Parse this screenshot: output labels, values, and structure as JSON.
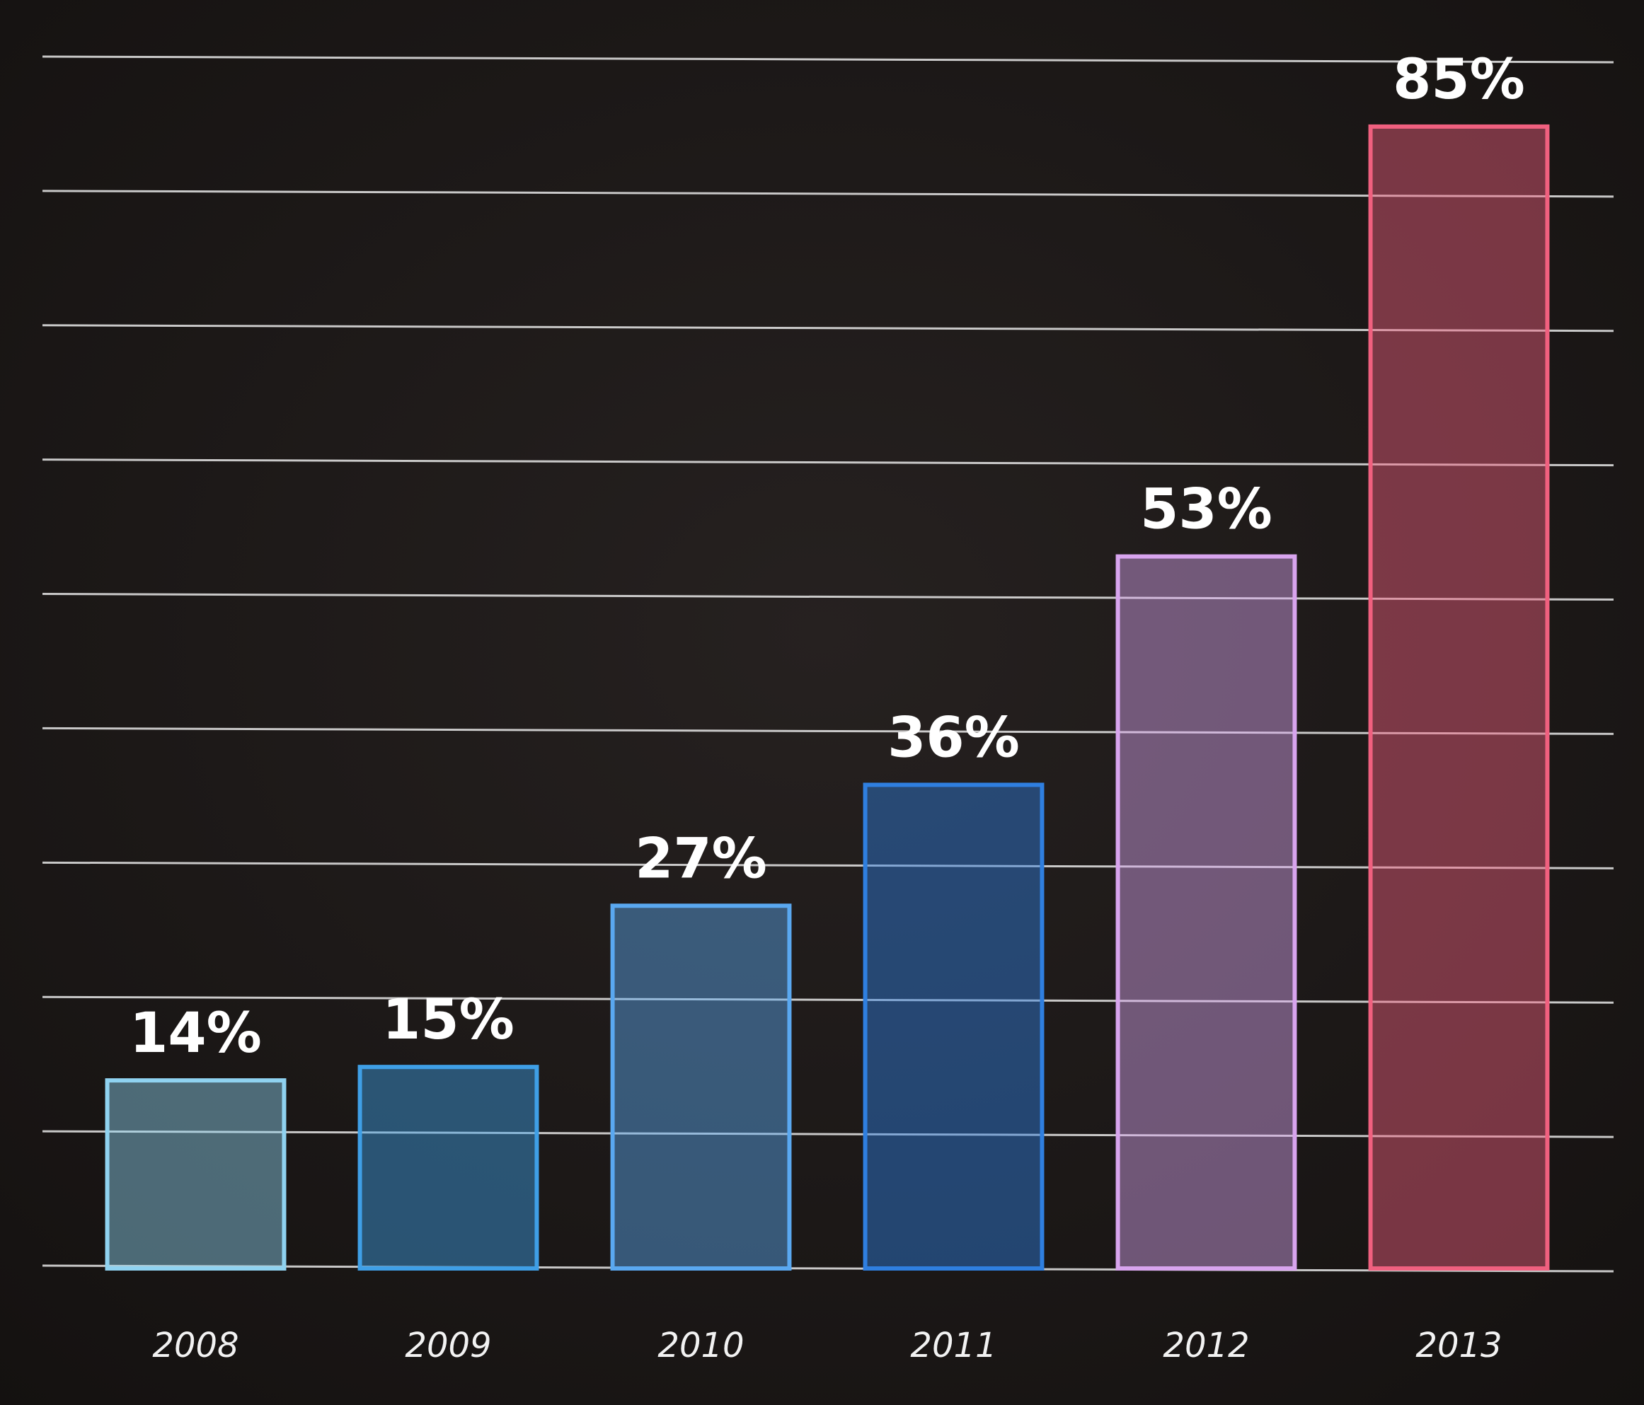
{
  "chart_data": {
    "type": "bar",
    "categories": [
      "2008",
      "2009",
      "2010",
      "2011",
      "2012",
      "2013"
    ],
    "values": [
      14,
      15,
      27,
      36,
      53,
      85
    ],
    "value_labels": [
      "14%",
      "15%",
      "27%",
      "36%",
      "53%",
      "85%"
    ],
    "colors": [
      "#8fd2f0",
      "#3f9fe6",
      "#5aa8f0",
      "#2f7fe0",
      "#d8a4ee",
      "#f0607f"
    ],
    "ylim": [
      0,
      94
    ],
    "yticks": [
      0,
      10,
      20,
      30,
      40,
      50,
      60,
      70,
      80,
      90
    ],
    "grid": true
  }
}
